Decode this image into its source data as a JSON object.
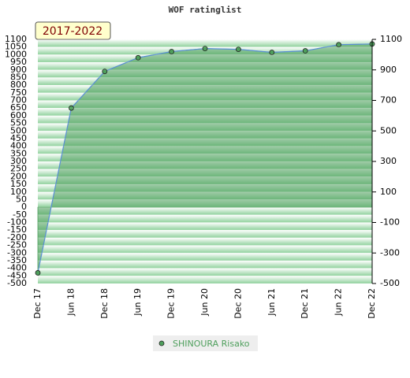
{
  "chart_data": {
    "type": "area",
    "title": "WOF ratinglist",
    "period": "2017-2022",
    "categories": [
      "Dec 17",
      "Jun 18",
      "Dec 18",
      "Jun 19",
      "Dec 19",
      "Jun 20",
      "Dec 20",
      "Jun 21",
      "Dec 21",
      "Jun 22",
      "Dec 22"
    ],
    "series": [
      {
        "name": "SHINOURA Risako",
        "color": "#4e9f5c",
        "values": [
          -430,
          650,
          890,
          980,
          1020,
          1040,
          1035,
          1015,
          1025,
          1065,
          1070
        ]
      }
    ],
    "ylim": [
      -500,
      1100
    ],
    "yticks": [
      1100,
      1050,
      1000,
      950,
      900,
      850,
      800,
      750,
      700,
      650,
      600,
      550,
      500,
      450,
      400,
      350,
      300,
      250,
      200,
      150,
      100,
      50,
      0,
      -50,
      -100,
      -150,
      -200,
      -250,
      -300,
      -350,
      -400,
      -450,
      -500
    ],
    "y2lim": [
      -500,
      1100
    ],
    "y2ticks": [
      1100,
      900,
      700,
      500,
      300,
      100,
      -100,
      -300,
      -500
    ],
    "grid": true
  }
}
